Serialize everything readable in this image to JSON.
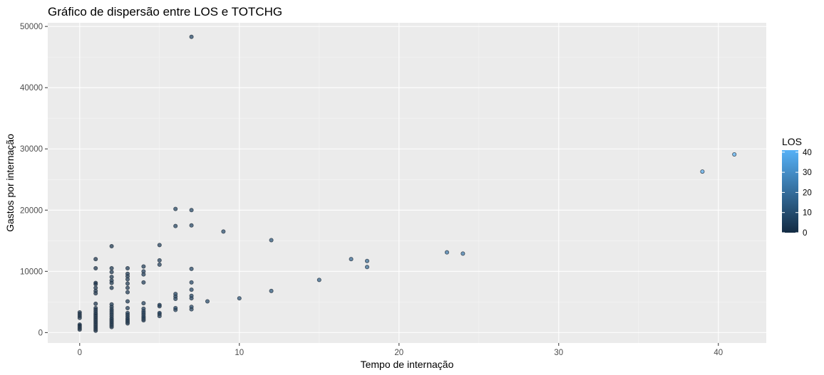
{
  "chart_data": {
    "type": "scatter",
    "title": "Gráfico de dispersão entre LOS e TOTCHG",
    "xlabel": "Tempo de internação",
    "ylabel": "Gastos por internação",
    "xlim": [
      -2,
      43
    ],
    "ylim": [
      -1700,
      50600
    ],
    "xticks": [
      0,
      10,
      20,
      30,
      40
    ],
    "yticks": [
      0,
      10000,
      20000,
      30000,
      40000,
      50000
    ],
    "grid": true,
    "color_by": "LOS",
    "legend": {
      "title": "LOS",
      "position": "right",
      "range": [
        0,
        41
      ],
      "ticks": [
        0,
        10,
        20,
        30,
        40
      ],
      "color_low": "#132B43",
      "color_high": "#56B1F7"
    },
    "colors": {
      "panel": "#EBEBEB",
      "grid_major": "#FFFFFF",
      "grid_minor": "#F5F5F5",
      "point_outline": "#3d4a57"
    },
    "points": [
      [
        0,
        500
      ],
      [
        0,
        700
      ],
      [
        0,
        900
      ],
      [
        0,
        1100
      ],
      [
        0,
        1300
      ],
      [
        0,
        2400
      ],
      [
        0,
        2700
      ],
      [
        0,
        3000
      ],
      [
        0,
        3300
      ],
      [
        1,
        300
      ],
      [
        1,
        500
      ],
      [
        1,
        700
      ],
      [
        1,
        900
      ],
      [
        1,
        1100
      ],
      [
        1,
        1300
      ],
      [
        1,
        1500
      ],
      [
        1,
        1700
      ],
      [
        1,
        1900
      ],
      [
        1,
        2100
      ],
      [
        1,
        2300
      ],
      [
        1,
        2500
      ],
      [
        1,
        2700
      ],
      [
        1,
        2900
      ],
      [
        1,
        3100
      ],
      [
        1,
        3400
      ],
      [
        1,
        3700
      ],
      [
        1,
        4000
      ],
      [
        1,
        4700
      ],
      [
        1,
        6400
      ],
      [
        1,
        6800
      ],
      [
        1,
        7300
      ],
      [
        1,
        7900
      ],
      [
        1,
        8100
      ],
      [
        1,
        10500
      ],
      [
        1,
        12000
      ],
      [
        2,
        900
      ],
      [
        2,
        1100
      ],
      [
        2,
        1300
      ],
      [
        2,
        1500
      ],
      [
        2,
        1700
      ],
      [
        2,
        1900
      ],
      [
        2,
        2100
      ],
      [
        2,
        2300
      ],
      [
        2,
        2600
      ],
      [
        2,
        2900
      ],
      [
        2,
        3200
      ],
      [
        2,
        3500
      ],
      [
        2,
        3800
      ],
      [
        2,
        4200
      ],
      [
        2,
        4600
      ],
      [
        2,
        7300
      ],
      [
        2,
        8100
      ],
      [
        2,
        8500
      ],
      [
        2,
        9100
      ],
      [
        2,
        9900
      ],
      [
        2,
        10500
      ],
      [
        2,
        14100
      ],
      [
        3,
        1500
      ],
      [
        3,
        1700
      ],
      [
        3,
        1900
      ],
      [
        3,
        2100
      ],
      [
        3,
        2300
      ],
      [
        3,
        2600
      ],
      [
        3,
        2900
      ],
      [
        3,
        3200
      ],
      [
        3,
        4000
      ],
      [
        3,
        5100
      ],
      [
        3,
        6600
      ],
      [
        3,
        7300
      ],
      [
        3,
        8000
      ],
      [
        3,
        8700
      ],
      [
        3,
        9200
      ],
      [
        3,
        9600
      ],
      [
        3,
        10500
      ],
      [
        4,
        2000
      ],
      [
        4,
        2200
      ],
      [
        4,
        2400
      ],
      [
        4,
        2600
      ],
      [
        4,
        2900
      ],
      [
        4,
        3200
      ],
      [
        4,
        3500
      ],
      [
        4,
        3900
      ],
      [
        4,
        4800
      ],
      [
        4,
        8200
      ],
      [
        4,
        9500
      ],
      [
        4,
        10000
      ],
      [
        4,
        10800
      ],
      [
        5,
        2700
      ],
      [
        5,
        3000
      ],
      [
        5,
        3200
      ],
      [
        5,
        4300
      ],
      [
        5,
        4500
      ],
      [
        5,
        11100
      ],
      [
        5,
        11800
      ],
      [
        5,
        14300
      ],
      [
        6,
        3700
      ],
      [
        6,
        4000
      ],
      [
        6,
        5500
      ],
      [
        6,
        5900
      ],
      [
        6,
        6300
      ],
      [
        6,
        17400
      ],
      [
        6,
        20200
      ],
      [
        7,
        3800
      ],
      [
        7,
        4200
      ],
      [
        7,
        5600
      ],
      [
        7,
        6000
      ],
      [
        7,
        7000
      ],
      [
        7,
        8200
      ],
      [
        7,
        10400
      ],
      [
        7,
        17500
      ],
      [
        7,
        20000
      ],
      [
        7,
        48300
      ],
      [
        8,
        5100
      ],
      [
        9,
        16500
      ],
      [
        10,
        5600
      ],
      [
        12,
        6800
      ],
      [
        12,
        15100
      ],
      [
        15,
        8600
      ],
      [
        17,
        12000
      ],
      [
        18,
        10700
      ],
      [
        18,
        11700
      ],
      [
        23,
        13100
      ],
      [
        24,
        12900
      ],
      [
        39,
        26300
      ],
      [
        41,
        29100
      ]
    ]
  }
}
